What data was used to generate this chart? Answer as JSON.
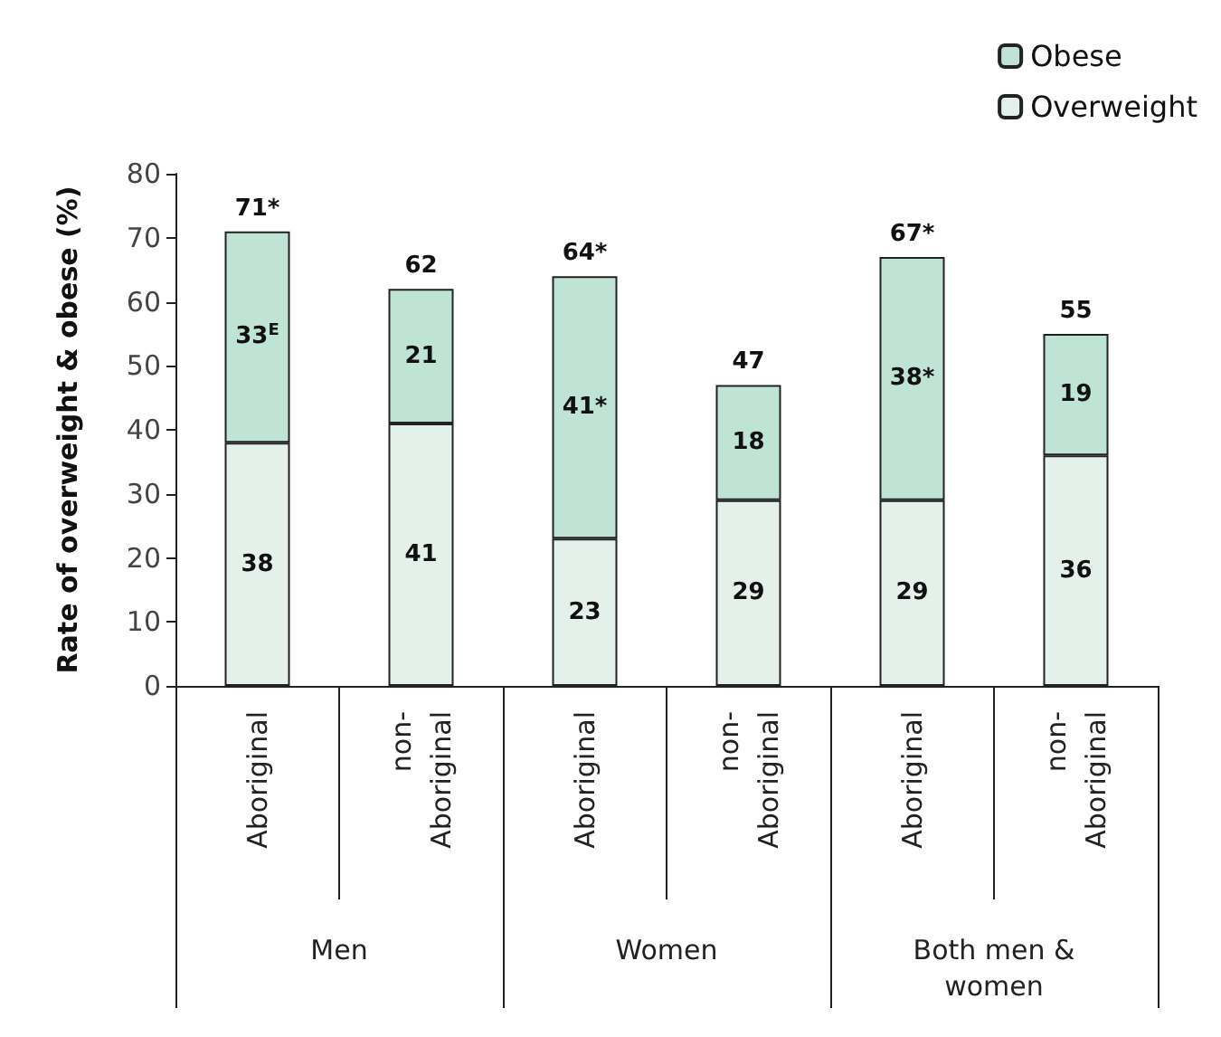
{
  "chart_data": {
    "type": "bar",
    "stacked": true,
    "ylabel": "Rate of overweight & obese (%)",
    "categories": [
      "Aboriginal",
      "non-\nAboriginal",
      "Aboriginal",
      "non-\nAboriginal",
      "Aboriginal",
      "non-\nAboriginal"
    ],
    "annotations": [
      "Men",
      "Women",
      "Both men &\nwomen"
    ],
    "series": [
      {
        "name": "Overweight",
        "color": "#e4f1ea",
        "values": [
          38,
          41,
          23,
          29,
          29,
          36
        ],
        "value_labels": [
          "38",
          "41",
          "23",
          "29",
          "29",
          "36"
        ]
      },
      {
        "name": "Obese",
        "color": "#bfe4d5",
        "values": [
          33,
          21,
          41,
          18,
          38,
          19
        ],
        "value_labels": [
          "33$^{E}$",
          "21",
          "41*",
          "18",
          "38*",
          "19"
        ]
      }
    ],
    "totals": [
      "71*",
      "62",
      "64*",
      "47",
      "67*",
      "55"
    ],
    "ylim": [
      0,
      80
    ],
    "yticks": [
      0,
      10,
      20,
      30,
      40,
      50,
      60,
      70,
      80
    ],
    "grid": false,
    "legend": "top right"
  }
}
